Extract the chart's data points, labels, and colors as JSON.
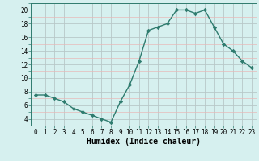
{
  "x": [
    0,
    1,
    2,
    3,
    4,
    5,
    6,
    7,
    8,
    9,
    10,
    11,
    12,
    13,
    14,
    15,
    16,
    17,
    18,
    19,
    20,
    21,
    22,
    23
  ],
  "y": [
    7.5,
    7.5,
    7.0,
    6.5,
    5.5,
    5.0,
    4.5,
    4.0,
    3.5,
    6.5,
    9.0,
    12.5,
    17.0,
    17.5,
    18.0,
    20.0,
    20.0,
    19.5,
    20.0,
    17.5,
    15.0,
    14.0,
    12.5,
    11.5
  ],
  "line_color": "#2e7b6e",
  "marker": "D",
  "marker_size": 2.2,
  "linewidth": 1.0,
  "xlabel": "Humidex (Indice chaleur)",
  "xlabel_fontsize": 7,
  "ytick_labels": [
    "4",
    "6",
    "8",
    "10",
    "12",
    "14",
    "16",
    "18",
    "20"
  ],
  "ytick_vals": [
    4,
    6,
    8,
    10,
    12,
    14,
    16,
    18,
    20
  ],
  "xlim": [
    -0.5,
    23.5
  ],
  "ylim": [
    3.0,
    21.0
  ],
  "background_color": "#d6f0ef",
  "grid_minor_color": "#e8b8b8",
  "grid_major_color": "#b8c8c8",
  "tick_fontsize": 5.5
}
